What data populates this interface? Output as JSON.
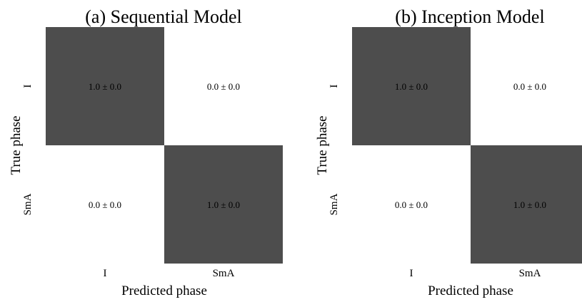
{
  "colors": {
    "high": "#4d4d4d",
    "low": "#ffffff",
    "text": "#000000"
  },
  "chart_data": [
    {
      "type": "heatmap",
      "title": "(a) Sequential Model",
      "xlabel": "Predicted phase",
      "ylabel": "True phase",
      "x_categories": [
        "I",
        "SmA"
      ],
      "y_categories": [
        "I",
        "SmA"
      ],
      "values": [
        [
          1.0,
          0.0
        ],
        [
          0.0,
          1.0
        ]
      ],
      "cell_labels": [
        [
          "1.0 ± 0.0",
          "0.0 ± 0.0"
        ],
        [
          "0.0 ± 0.0",
          "1.0 ± 0.0"
        ]
      ],
      "grid": false,
      "legend": "none"
    },
    {
      "type": "heatmap",
      "title": "(b) Inception Model",
      "xlabel": "Predicted phase",
      "ylabel": "True phase",
      "x_categories": [
        "I",
        "SmA"
      ],
      "y_categories": [
        "I",
        "SmA"
      ],
      "values": [
        [
          1.0,
          0.0
        ],
        [
          0.0,
          1.0
        ]
      ],
      "cell_labels": [
        [
          "1.0 ± 0.0",
          "0.0 ± 0.0"
        ],
        [
          "0.0 ± 0.0",
          "1.0 ± 0.0"
        ]
      ],
      "grid": false,
      "legend": "none"
    }
  ]
}
